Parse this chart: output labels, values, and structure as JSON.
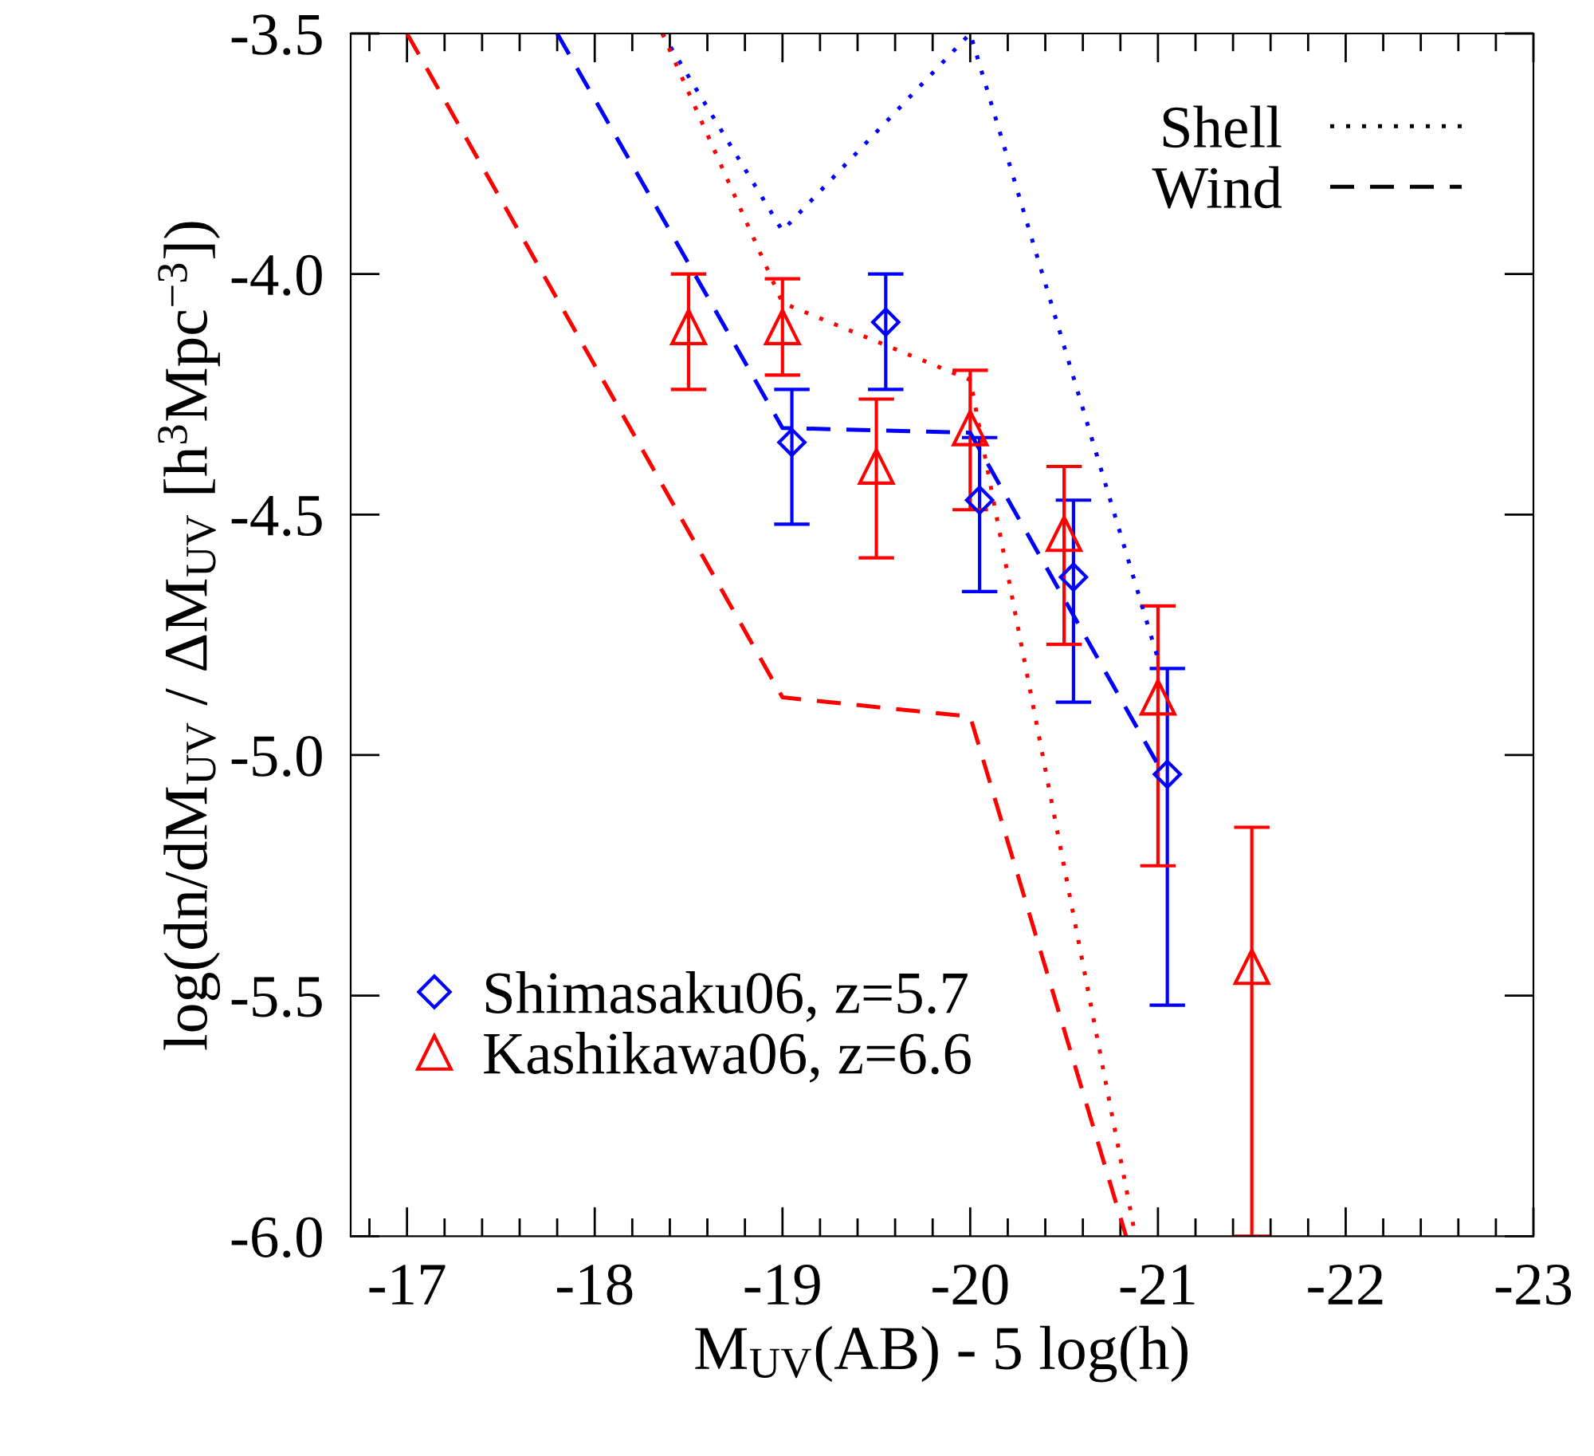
{
  "chart_data": {
    "type": "scatter",
    "xlabel": "M$_{UV}$(AB) - 5 log(h)",
    "ylabel": "log(dn/dM$_{UV}$ / ΔM$_{UV}$ [h$^{3}$Mpc$^{−3}$])",
    "xlim": [
      -16.7,
      -23
    ],
    "xticks": [
      -17,
      -18,
      -19,
      -20,
      -21,
      -22,
      -23
    ],
    "ylim": [
      -6.0,
      -3.5
    ],
    "yticks": [
      {
        "value": -6,
        "label": "-6.0"
      },
      -5.5,
      {
        "value": -5,
        "label": "-5.0"
      },
      -4.5,
      {
        "value": -4,
        "label": "-4.0"
      },
      -3.5
    ],
    "grid": false,
    "legend": "bottom left",
    "annotations": [
      "Shell",
      "Wind"
    ],
    "series": [
      {
        "name": "Shimasaku06, z=5.7",
        "type": "scatter",
        "marker": "diamond",
        "color": "#0000ff",
        "x": [
          -19.05,
          -19.55,
          -20.05,
          -20.55,
          -21.05
        ],
        "values": [
          -4.35,
          -4.1,
          -4.47,
          -4.63,
          -5.04
        ],
        "errors": [
          [
            -4.52,
            -4.24
          ],
          [
            -4.24,
            -4.0
          ],
          [
            -4.66,
            -4.34
          ],
          [
            -4.89,
            -4.47
          ],
          [
            -5.52,
            -4.82
          ]
        ]
      },
      {
        "name": "Kashikawa06, z=6.6",
        "type": "scatter",
        "marker": "triangle",
        "color": "#ff0000",
        "x": [
          -18.5,
          -19.0,
          -19.5,
          -20.0,
          -20.5,
          -21.0,
          -21.5
        ],
        "values": [
          -4.11,
          -4.11,
          -4.4,
          -4.32,
          -4.54,
          -4.88,
          -5.44
        ],
        "errors": [
          [
            -4.24,
            -4.0
          ],
          [
            -4.21,
            -4.01
          ],
          [
            -4.59,
            -4.26
          ],
          [
            -4.49,
            -4.2
          ],
          [
            -4.77,
            -4.4
          ],
          [
            -5.23,
            -4.69
          ],
          [
            -6.0,
            -5.15
          ]
        ]
      },
      {
        "type": "line",
        "line_style": "dotted",
        "color": "#0000ff",
        "x": [
          -18.36,
          -19.0,
          -20.0,
          -21.0
        ],
        "values": [
          -3.5,
          -3.91,
          -3.5,
          -4.8
        ]
      },
      {
        "type": "line",
        "line_style": "dotted",
        "color": "#ff0000",
        "x": [
          -18.36,
          -19.0,
          -20.0,
          -20.88
        ],
        "values": [
          -3.5,
          -4.06,
          -4.22,
          -6.0
        ]
      },
      {
        "type": "line",
        "line_style": "dashed",
        "color": "#0000ff",
        "x": [
          -17.8,
          -19.0,
          -20.0,
          -21.0
        ],
        "values": [
          -3.5,
          -4.32,
          -4.33,
          -5.02
        ]
      },
      {
        "type": "line",
        "line_style": "dashed",
        "color": "#ff0000",
        "x": [
          -17.0,
          -19.0,
          -20.0,
          -20.83
        ],
        "values": [
          -3.5,
          -4.88,
          -4.92,
          -6.0
        ]
      }
    ]
  }
}
